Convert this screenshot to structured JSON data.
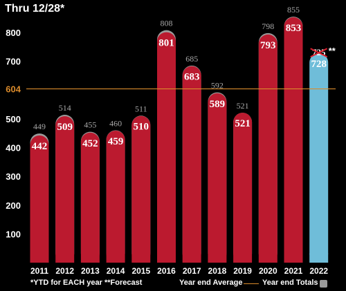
{
  "title": "Thru 12/28*",
  "footnote": "*YTD for EACH year **Forecast",
  "legend": {
    "average_label": "Year end Average",
    "totals_label": "Year end Totals"
  },
  "colors": {
    "bar": "#bb1a2f",
    "forecast_bar": "#6fbdd9",
    "totals_cap": "#9a9a9a",
    "average_line": "#d98a2b",
    "background": "#000000"
  },
  "chart_data": {
    "type": "bar",
    "categories": [
      "2011",
      "2012",
      "2013",
      "2014",
      "2015",
      "2016",
      "2017",
      "2018",
      "2019",
      "2020",
      "2021",
      "2022"
    ],
    "series": [
      {
        "values": [
          442,
          509,
          452,
          459,
          510,
          801,
          683,
          589,
          521,
          793,
          853,
          728
        ]
      },
      {
        "values": [
          449,
          514,
          455,
          460,
          511,
          808,
          685,
          592,
          521,
          798,
          855,
          725
        ]
      }
    ],
    "forecast": {
      "category": "2022",
      "value": 728,
      "crossed_out_total": "725",
      "marker": "**"
    },
    "reference_line": {
      "value": 604,
      "label": "604"
    },
    "ylim": [
      0,
      850
    ],
    "yticks": [
      100,
      200,
      300,
      400,
      500,
      600,
      700,
      800
    ],
    "ytick_labels": [
      "100",
      "200",
      "300",
      "400",
      "500",
      "",
      "700",
      "800"
    ],
    "grid": false,
    "legend_position": "bottom-right"
  }
}
